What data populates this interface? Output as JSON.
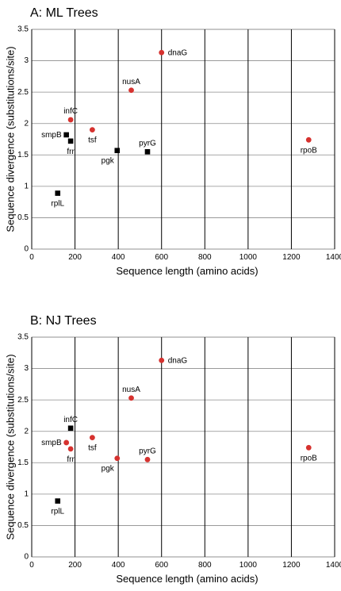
{
  "colors": {
    "circle": "#d6322f",
    "square": "#000000"
  },
  "chart_data": [
    {
      "type": "scatter",
      "title": "A: ML Trees",
      "xlabel": "Sequence length (amino acids)",
      "ylabel": "Sequence divergence (substitutions/site)",
      "xlim": [
        0,
        1400
      ],
      "ylim": [
        0,
        3.5
      ],
      "xticks": [
        0,
        200,
        400,
        600,
        800,
        1000,
        1200,
        1400
      ],
      "yticks": [
        0,
        0.5,
        1,
        1.5,
        2,
        2.5,
        3,
        3.5
      ],
      "vertical_grid": true,
      "horizontal_grid": true,
      "points": [
        {
          "label": "dnaG",
          "x": 600,
          "y": 3.13,
          "marker": "circle",
          "label_pos": "right"
        },
        {
          "label": "nusA",
          "x": 460,
          "y": 2.53,
          "marker": "circle",
          "label_pos": "top"
        },
        {
          "label": "infC",
          "x": 180,
          "y": 2.06,
          "marker": "circle",
          "label_pos": "top"
        },
        {
          "label": "tsf",
          "x": 280,
          "y": 1.9,
          "marker": "circle",
          "label_pos": "bottom"
        },
        {
          "label": "smpB",
          "x": 160,
          "y": 1.82,
          "marker": "square",
          "label_pos": "left"
        },
        {
          "label": "frr",
          "x": 180,
          "y": 1.72,
          "marker": "square",
          "label_pos": "bottom"
        },
        {
          "label": "pgk",
          "x": 395,
          "y": 1.57,
          "marker": "square",
          "label_pos": "bottom-left"
        },
        {
          "label": "pyrG",
          "x": 535,
          "y": 1.55,
          "marker": "square",
          "label_pos": "top"
        },
        {
          "label": "rpoB",
          "x": 1280,
          "y": 1.74,
          "marker": "circle",
          "label_pos": "bottom"
        },
        {
          "label": "rplL",
          "x": 120,
          "y": 0.89,
          "marker": "square",
          "label_pos": "bottom"
        }
      ]
    },
    {
      "type": "scatter",
      "title": "B: NJ Trees",
      "xlabel": "Sequence length (amino acids)",
      "ylabel": "Sequence divergence (substitutions/site)",
      "xlim": [
        0,
        1400
      ],
      "ylim": [
        0,
        3.5
      ],
      "xticks": [
        0,
        200,
        400,
        600,
        800,
        1000,
        1200,
        1400
      ],
      "yticks": [
        0,
        0.5,
        1,
        1.5,
        2,
        2.5,
        3,
        3.5
      ],
      "vertical_grid": true,
      "horizontal_grid": true,
      "points": [
        {
          "label": "dnaG",
          "x": 600,
          "y": 3.13,
          "marker": "circle",
          "label_pos": "right"
        },
        {
          "label": "nusA",
          "x": 460,
          "y": 2.53,
          "marker": "circle",
          "label_pos": "top"
        },
        {
          "label": "infC",
          "x": 180,
          "y": 2.05,
          "marker": "square",
          "label_pos": "top"
        },
        {
          "label": "tsf",
          "x": 280,
          "y": 1.9,
          "marker": "circle",
          "label_pos": "bottom"
        },
        {
          "label": "smpB",
          "x": 160,
          "y": 1.82,
          "marker": "circle",
          "label_pos": "left"
        },
        {
          "label": "frr",
          "x": 180,
          "y": 1.72,
          "marker": "circle",
          "label_pos": "bottom"
        },
        {
          "label": "pgk",
          "x": 395,
          "y": 1.57,
          "marker": "circle",
          "label_pos": "bottom-left"
        },
        {
          "label": "pyrG",
          "x": 535,
          "y": 1.55,
          "marker": "circle",
          "label_pos": "top"
        },
        {
          "label": "rpoB",
          "x": 1280,
          "y": 1.74,
          "marker": "circle",
          "label_pos": "bottom"
        },
        {
          "label": "rplL",
          "x": 120,
          "y": 0.89,
          "marker": "square",
          "label_pos": "bottom"
        }
      ]
    }
  ]
}
